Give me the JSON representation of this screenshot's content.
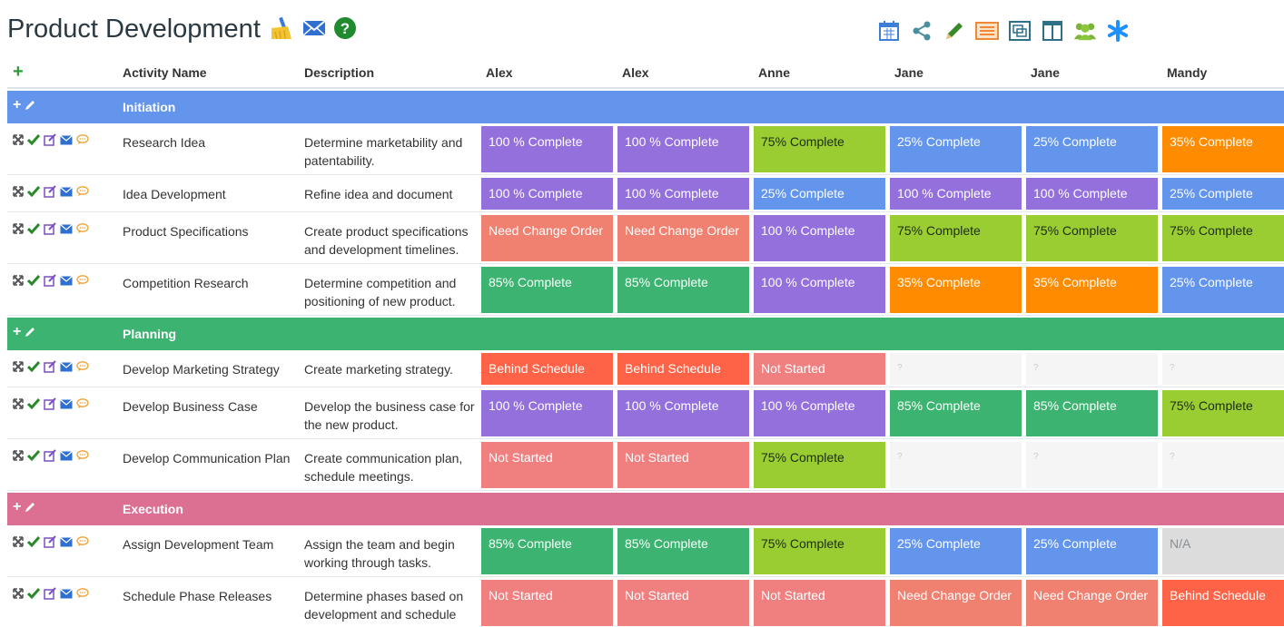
{
  "page": {
    "title": "Product Development"
  },
  "title_icons": [
    "broom-icon",
    "mail-icon",
    "help-icon"
  ],
  "toolbar": [
    "calendar-icon",
    "share-icon",
    "pencil-icon",
    "list-view-icon",
    "layout-icon",
    "split-view-icon",
    "team-icon",
    "asterisk-icon"
  ],
  "columns": {
    "add": "+",
    "activity": "Activity Name",
    "description": "Description",
    "people": [
      "Alex",
      "Alex",
      "Anne",
      "Jane",
      "Jane",
      "Mandy"
    ]
  },
  "status_colors": {
    "complete100": "#9370db",
    "complete85": "#3cb371",
    "complete75": "#9acd32",
    "complete35": "#ff8c00",
    "complete25": "#6495ed",
    "need_change_order": "#f08070",
    "not_started": "#f08080",
    "behind_schedule": "#ff6347",
    "na": "#dcdcdc",
    "empty": "#f5f5f5"
  },
  "groups": [
    {
      "name": "Initiation",
      "color": "#6495ed",
      "rows": [
        {
          "name": "Research Idea",
          "desc": "Determine marketability and patentability.",
          "cells": [
            "100 % Complete",
            "100 % Complete",
            "75% Complete",
            "25% Complete",
            "25% Complete",
            "35% Complete"
          ]
        },
        {
          "name": "Idea Development",
          "desc": "Refine idea and document",
          "cells": [
            "100 % Complete",
            "100 % Complete",
            "25% Complete",
            "100 % Complete",
            "100 % Complete",
            "25% Complete"
          ]
        },
        {
          "name": "Product Specifications",
          "desc": "Create product specifications and development timelines.",
          "cells": [
            "Need Change Order",
            "Need Change Order",
            "100 % Complete",
            "75% Complete",
            "75% Complete",
            "75% Complete"
          ]
        },
        {
          "name": "Competition Research",
          "desc": "Determine competition and positioning of new product.",
          "cells": [
            "85% Complete",
            "85% Complete",
            "100 % Complete",
            "35% Complete",
            "35% Complete",
            "25% Complete"
          ]
        }
      ]
    },
    {
      "name": "Planning",
      "color": "#3cb371",
      "rows": [
        {
          "name": "Develop Marketing Strategy",
          "desc": "Create marketing strategy.",
          "cells": [
            "Behind Schedule",
            "Behind Schedule",
            "Not Started",
            "?",
            "?",
            "?"
          ]
        },
        {
          "name": "Develop Business Case",
          "desc": "Develop the business case for the new product.",
          "cells": [
            "100 % Complete",
            "100 % Complete",
            "100 % Complete",
            "85% Complete",
            "85% Complete",
            "75% Complete"
          ]
        },
        {
          "name": "Develop Communication Plan",
          "desc": "Create communication plan, schedule meetings.",
          "cells": [
            "Not Started",
            "Not Started",
            "75% Complete",
            "?",
            "?",
            "?"
          ]
        }
      ]
    },
    {
      "name": "Execution",
      "color": "#db7093",
      "rows": [
        {
          "name": "Assign Development Team",
          "desc": "Assign the team and begin working through tasks.",
          "cells": [
            "85% Complete",
            "85% Complete",
            "75% Complete",
            "25% Complete",
            "25% Complete",
            "N/A"
          ]
        },
        {
          "name": "Schedule Phase Releases",
          "desc": "Determine phases based on development and schedule",
          "cells": [
            "Not Started",
            "Not Started",
            "Not Started",
            "Need Change Order",
            "Need Change Order",
            "Behind Schedule"
          ]
        }
      ]
    }
  ]
}
